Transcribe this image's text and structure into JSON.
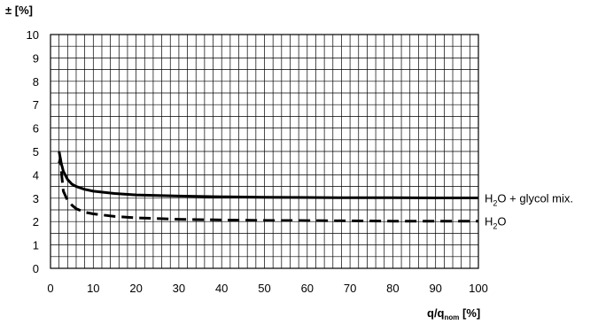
{
  "chart_data": {
    "type": "line",
    "ylabel": "± [%]",
    "xlabel": {
      "main": "q/q",
      "sub": "nom",
      "unit": " [%]"
    },
    "xlim": [
      0,
      100
    ],
    "ylim": [
      0,
      10
    ],
    "x_ticks": [
      0,
      10,
      20,
      30,
      40,
      50,
      60,
      70,
      80,
      90,
      100
    ],
    "y_ticks": [
      0,
      1,
      2,
      3,
      4,
      5,
      6,
      7,
      8,
      9,
      10
    ],
    "grid": {
      "x_minor_step": 2,
      "y_step": 0.5
    },
    "series": [
      {
        "label_parts": [
          [
            "H",
            "",
            ""
          ],
          [
            "2",
            "sub",
            ""
          ],
          [
            "O + glycol mix.",
            "",
            ""
          ]
        ],
        "style": "solid",
        "points": [
          [
            2,
            5.0
          ],
          [
            2.5,
            4.5
          ],
          [
            3,
            4.15
          ],
          [
            4,
            3.8
          ],
          [
            5,
            3.6
          ],
          [
            6,
            3.5
          ],
          [
            8,
            3.38
          ],
          [
            10,
            3.3
          ],
          [
            15,
            3.2
          ],
          [
            20,
            3.14
          ],
          [
            30,
            3.09
          ],
          [
            40,
            3.06
          ],
          [
            50,
            3.04
          ],
          [
            60,
            3.03
          ],
          [
            70,
            3.02
          ],
          [
            80,
            3.02
          ],
          [
            90,
            3.01
          ],
          [
            100,
            3.01
          ]
        ]
      },
      {
        "label_parts": [
          [
            "H",
            "",
            ""
          ],
          [
            "2",
            "sub",
            ""
          ],
          [
            "O",
            "",
            ""
          ]
        ],
        "style": "dashed",
        "points": [
          [
            2,
            4.5
          ],
          [
            2.3,
            4.7
          ],
          [
            2.6,
            4.0
          ],
          [
            3,
            3.3
          ],
          [
            4,
            2.9
          ],
          [
            5,
            2.7
          ],
          [
            6,
            2.55
          ],
          [
            8,
            2.4
          ],
          [
            10,
            2.33
          ],
          [
            15,
            2.22
          ],
          [
            20,
            2.16
          ],
          [
            30,
            2.1
          ],
          [
            40,
            2.07
          ],
          [
            50,
            2.05
          ],
          [
            60,
            2.04
          ],
          [
            70,
            2.03
          ],
          [
            80,
            2.02
          ],
          [
            90,
            2.02
          ],
          [
            100,
            2.02
          ]
        ]
      }
    ]
  }
}
